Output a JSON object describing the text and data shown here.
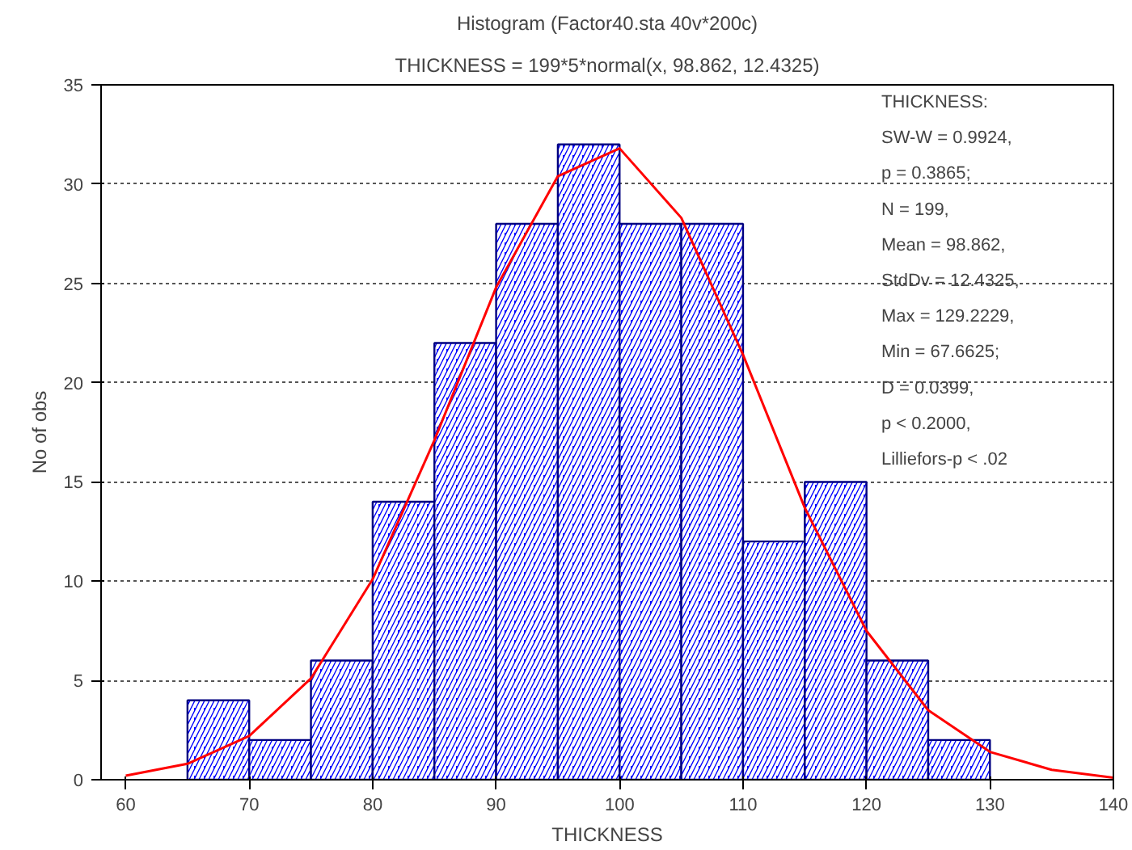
{
  "chart_data": {
    "type": "histogram",
    "title": "Histogram (Factor40.sta 40v*200c)",
    "subtitle": "THICKNESS = 199*5*normal(x, 98.862, 12.4325)",
    "xlabel": "THICKNESS",
    "ylabel": "No of obs",
    "series": [
      {
        "color": "#0000ff",
        "bins": [
          65,
          70,
          75,
          80,
          85,
          90,
          95,
          100,
          105,
          110,
          115,
          120,
          125,
          130
        ],
        "values": [
          4,
          2,
          6,
          14,
          22,
          28,
          32,
          28,
          28,
          12,
          15,
          6,
          2
        ]
      },
      {
        "type": "line",
        "color": "#ff0000",
        "x": [
          60,
          65,
          70,
          75,
          80,
          85,
          90,
          95,
          100,
          105,
          110,
          115,
          120,
          125,
          130,
          135,
          140
        ],
        "values": [
          0.2,
          0.8,
          2.2,
          5.1,
          10.1,
          17.1,
          24.8,
          30.4,
          31.8,
          28.3,
          21.4,
          13.7,
          7.5,
          3.5,
          1.4,
          0.5,
          0.1
        ]
      }
    ],
    "xlim": [
      58,
      140
    ],
    "ylim": [
      0,
      35
    ],
    "xticks": [
      60,
      70,
      80,
      90,
      100,
      110,
      120,
      130,
      140
    ],
    "yticks": [
      0,
      5,
      10,
      15,
      20,
      25,
      30,
      35
    ],
    "grid": "y",
    "annotations": [
      "THICKNESS:\nSW-W = 0.9924,\n   p = 0.3865;\nN = 199,\nMean = 98.862,\nStdDv = 12.4325,\nMax = 129.2229,\nMin = 67.6625;\nD = 0.0399,\n   p < 0.2000,\nLilliefors-p < .02"
    ]
  }
}
